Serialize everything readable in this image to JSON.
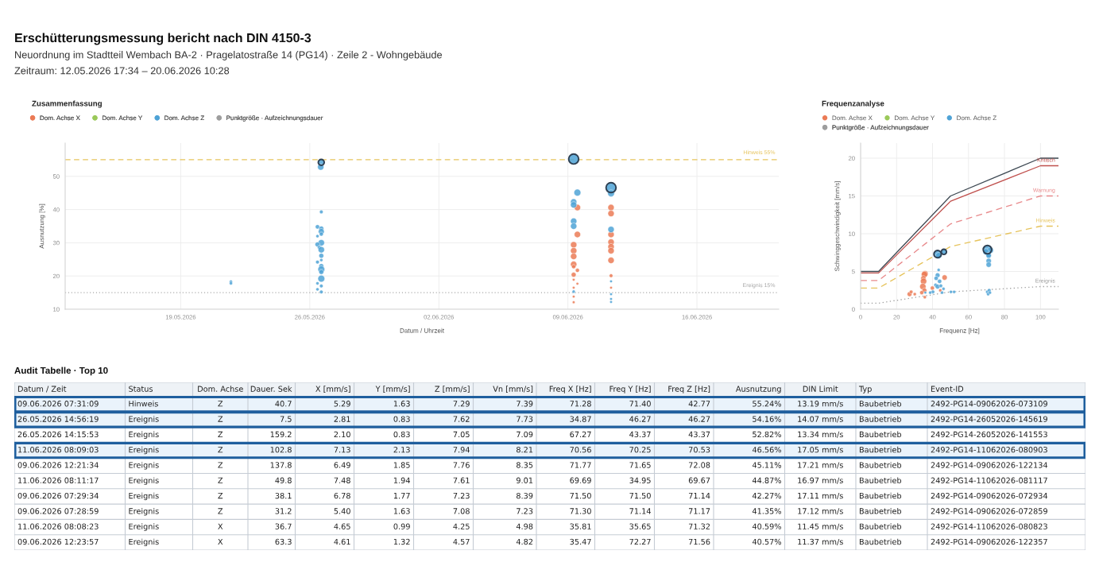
{
  "chart_data": [
    {
      "type": "other",
      "title": "Erschütterungsmessung bericht nach DIN 4150-3",
      "subtitle": "Neuordnung im Stadtteil Wembach BA-2 · Pragelatostraße 14 (PG14) · Zeile 2 - Wohngebäude",
      "annotations": [
        "Zeitraum: 12.05.2026 17:34 – 20.06.2026 10:28"
      ]
    },
    {
      "type": "bubble",
      "title": "Zusammenfassung",
      "xlabel": "Datum / Uhrzeit",
      "ylabel": "Ausnutzung [%]",
      "xlim": [
        "2026-05-12T17:34",
        "2026-06-20T10:28"
      ],
      "ylim": [
        10,
        60
      ],
      "xticks": [
        {
          "value": "2026-05-19",
          "label": "19.05.2026"
        },
        {
          "value": "2026-05-26",
          "label": "26.05.2026"
        },
        {
          "value": "2026-06-02",
          "label": "02.06.2026"
        },
        {
          "value": "2026-06-09",
          "label": "09.06.2026"
        },
        {
          "value": "2026-06-16",
          "label": "16.06.2026"
        }
      ],
      "yticks": [
        10,
        20,
        30,
        40,
        50
      ],
      "grid": true,
      "legend": "top left",
      "ref_lines": [
        {
          "axis": "y",
          "value": 55,
          "label": "Hinweis 55%",
          "color": "#e6c35c",
          "line_style": "dashed"
        },
        {
          "axis": "y",
          "value": 15,
          "label": "Ereignis 15%",
          "color": "#a6a6a6",
          "line_style": "dotted"
        }
      ],
      "series": [
        {
          "name": "Dom. Achse X",
          "color": "#eb7b56",
          "marker": "circle",
          "x": [
            "2026-06-09T12:23",
            "2026-06-09T12:22",
            "2026-06-09T07:30",
            "2026-06-09T07:30",
            "2026-06-09T07:30",
            "2026-06-09T07:30",
            "2026-06-09T07:30",
            "2026-06-09T12:22",
            "2026-06-09T07:30",
            "2026-06-09T07:30",
            "2026-06-09T12:22",
            "2026-06-09T07:30",
            "2026-06-09T07:30",
            "2026-06-09T07:30",
            "2026-06-11T08:08",
            "2026-06-11T08:10",
            "2026-06-11T08:10",
            "2026-06-11T08:10",
            "2026-06-11T08:10",
            "2026-06-11T08:10",
            "2026-06-11T08:10",
            "2026-06-11T08:10",
            "2026-06-11T08:10"
          ],
          "values": [
            40.6,
            32.5,
            29.4,
            27.6,
            25.9,
            23.5,
            22.8,
            21.7,
            20.4,
            18.9,
            17.7,
            16.5,
            13.8,
            12.1,
            40.6,
            38.8,
            32.5,
            30.2,
            28.8,
            27.6,
            24.7,
            20.1,
            16.5
          ],
          "sizes": [
            0.4,
            0.4,
            0.4,
            0.4,
            0.4,
            0.4,
            0.16,
            0.16,
            0.23,
            0.07,
            0.07,
            0.07,
            0.07,
            0.07,
            0.4,
            0.4,
            0.4,
            0.4,
            0.4,
            0.4,
            0.4,
            0.13,
            0.07
          ]
        },
        {
          "name": "Dom. Achse Y",
          "color": "#9bc95a",
          "marker": "circle"
        },
        {
          "name": "Dom. Achse Z",
          "color": "#4fa3d6",
          "marker": "circle",
          "x": [
            "2026-05-21T17:20",
            "2026-05-21T17:20",
            "2026-05-26T14:56",
            "2026-05-26T14:15",
            "2026-05-26T15:00",
            "2026-05-26T10:00",
            "2026-05-26T15:00",
            "2026-05-26T15:00",
            "2026-05-26T15:00",
            "2026-05-26T10:00",
            "2026-05-26T15:00",
            "2026-05-26T10:00",
            "2026-05-26T12:30",
            "2026-05-26T15:00",
            "2026-05-26T15:00",
            "2026-05-26T15:00",
            "2026-05-26T10:00",
            "2026-05-26T15:00",
            "2026-05-26T15:00",
            "2026-05-26T15:00",
            "2026-05-26T15:00",
            "2026-05-26T10:00",
            "2026-05-26T15:00",
            "2026-05-26T10:00",
            "2026-05-26T15:00",
            "2026-06-09T07:31",
            "2026-06-09T12:21",
            "2026-06-09T07:29",
            "2026-06-09T07:28",
            "2026-06-09T07:30",
            "2026-06-09T07:30",
            "2026-06-09T07:30",
            "2026-06-11T08:09",
            "2026-06-11T08:11",
            "2026-06-11T08:10",
            "2026-06-11T08:10",
            "2026-06-11T08:10",
            "2026-06-11T08:10",
            "2026-06-11T08:10"
          ],
          "values": [
            18.3,
            17.8,
            54.2,
            52.8,
            39.3,
            34.8,
            34.3,
            33.4,
            32.6,
            32.0,
            30.0,
            29.5,
            28.6,
            27.9,
            26.1,
            24.8,
            24.2,
            23.0,
            22.0,
            21.2,
            19.2,
            17.8,
            17.0,
            16.0,
            15.2,
            55.2,
            45.1,
            42.3,
            41.4,
            36.5,
            35.0,
            15.3,
            46.6,
            44.9,
            34.0,
            18.4,
            14.5,
            13.1,
            12.2
          ],
          "sizes": [
            0.1,
            0.1,
            0.36,
            0.4,
            0.13,
            0.18,
            0.23,
            0.34,
            0.16,
            0.1,
            0.4,
            0.23,
            0.16,
            0.4,
            0.23,
            0.1,
            0.13,
            0.23,
            0.47,
            0.23,
            0.47,
            0.1,
            0.13,
            0.1,
            0.13,
            1.0,
            0.47,
            0.4,
            0.4,
            0.4,
            0.4,
            0.1,
            1.0,
            0.47,
            0.4,
            0.07,
            0.07,
            0.07,
            0.07
          ]
        },
        {
          "name": "Punktgröße · Aufzeichnungsdauer",
          "color": "#9e9e9e",
          "marker": "circle"
        },
        {
          "type": "scatter",
          "color": "#2e4053",
          "marker": "circle",
          "x": [
            "2026-06-09T07:31",
            "2026-05-26T14:56",
            "2026-06-11T08:09"
          ],
          "values": [
            55.2,
            54.2,
            46.6
          ],
          "sizes": [
            1.0,
            0.36,
            1.0
          ]
        }
      ]
    },
    {
      "type": "bubble",
      "title": "Frequenzanalyse",
      "xlabel": "Frequenz [Hz]",
      "ylabel": "Schwinggeschwindigkeit [mm/s]",
      "xlim": [
        0,
        110
      ],
      "ylim": [
        0,
        22
      ],
      "xticks": [
        0,
        20,
        40,
        60,
        80,
        100
      ],
      "yticks": [
        0,
        5,
        10,
        15,
        20
      ],
      "grid": true,
      "legend": "top left",
      "series": [
        {
          "name": "Dom. Achse X",
          "color": "#eb7b56",
          "marker": "circle",
          "x": [
            35.8,
            35.5,
            34.9,
            35.0,
            34.6,
            35.5,
            34.0,
            35.7,
            27.2,
            28.1,
            30.1,
            39.9,
            44.3,
            46.7
          ],
          "values": [
            4.7,
            4.6,
            4.1,
            3.7,
            3.0,
            2.5,
            2.2,
            1.6,
            2.0,
            2.3,
            2.0,
            2.8,
            2.5,
            4.2
          ],
          "sizes": [
            0.56,
            0.56,
            0.39,
            0.56,
            0.56,
            0.32,
            0.23,
            0.14,
            0.32,
            0.18,
            0.14,
            0.23,
            0.14,
            0.39
          ]
        },
        {
          "name": "Dom. Achse Y",
          "color": "#9bc95a",
          "marker": "circle"
        },
        {
          "name": "Dom. Achse Z",
          "color": "#4fa3d6",
          "marker": "circle",
          "x": [
            42.8,
            43.4,
            46.3,
            70.5,
            72.1,
            69.7,
            71.1,
            71.2,
            71.2,
            71.2,
            43.4,
            42.8,
            42.0,
            43.9,
            41.7,
            42.8,
            44.6,
            40.2,
            38.7,
            46.1,
            45.3,
            50.2,
            52.0,
            36.0,
            70.5,
            71.5,
            70.9,
            71.9
          ],
          "values": [
            7.3,
            7.1,
            7.6,
            7.9,
            7.8,
            7.6,
            7.2,
            7.1,
            6.4,
            5.9,
            5.2,
            4.5,
            4.1,
            3.7,
            3.2,
            3.0,
            3.1,
            2.3,
            2.2,
            2.7,
            2.2,
            2.3,
            2.3,
            2.2,
            2.3,
            2.5,
            2.0,
            2.2
          ],
          "sizes": [
            0.77,
            0.56,
            0.39,
            1.0,
            0.56,
            0.56,
            0.39,
            0.39,
            0.39,
            0.39,
            0.14,
            0.32,
            0.25,
            0.25,
            0.18,
            0.32,
            0.18,
            0.18,
            0.14,
            0.14,
            0.14,
            0.14,
            0.14,
            0.1,
            0.18,
            0.18,
            0.14,
            0.14
          ]
        },
        {
          "name": "Punktgröße · Aufzeichnungsdauer",
          "color": "#9e9e9e",
          "marker": "circle"
        },
        {
          "type": "scatter",
          "color": "#2e4053",
          "marker": "circle",
          "x": [
            42.8,
            46.3,
            70.5
          ],
          "values": [
            7.3,
            7.6,
            7.9
          ],
          "sizes": [
            0.77,
            0.39,
            1.0
          ]
        },
        {
          "type": "line",
          "color": "#3d4852",
          "x": [
            0,
            10,
            50,
            100,
            110
          ],
          "values": [
            5,
            5,
            15,
            20,
            20
          ]
        },
        {
          "type": "line",
          "name": "Kritisch",
          "color": "#c0504d",
          "x": [
            0,
            10,
            50,
            100,
            110
          ],
          "values": [
            4.8,
            4.8,
            14.3,
            19,
            19
          ]
        },
        {
          "type": "line",
          "name": "Warnung",
          "color": "#e8898b",
          "line_style": "dashed",
          "x": [
            0,
            10,
            50,
            100,
            110
          ],
          "values": [
            3.8,
            3.8,
            11.3,
            15,
            15
          ]
        },
        {
          "type": "line",
          "name": "Hinweis",
          "color": "#e6c35c",
          "line_style": "dashed",
          "x": [
            0,
            10,
            50,
            100,
            110
          ],
          "values": [
            2.8,
            2.8,
            8.3,
            11,
            11
          ]
        },
        {
          "type": "line",
          "name": "Ereignis",
          "color": "#9e9e9e",
          "line_style": "dotted",
          "x": [
            0,
            10,
            50,
            100,
            110
          ],
          "values": [
            0.8,
            0.8,
            2.3,
            3,
            3
          ]
        }
      ]
    },
    {
      "type": "other",
      "title": "Audit Tabelle · Top 10",
      "categories": [
        "Datum / Zeit",
        "Status",
        "Dom. Achse",
        "Dauer. Sek",
        "X [mm/s]",
        "Y [mm/s]",
        "Z [mm/s]",
        "Vn [mm/s]",
        "Freq X [Hz]",
        "Freq Y [Hz]",
        "Freq Z [Hz]",
        "Ausnutzung",
        "DIN Limit",
        "Typ",
        "Event-ID"
      ],
      "cell_labels": [
        [
          "09.06.2026 07:31:09",
          "Hinweis",
          "Z",
          "40.7",
          "5.29",
          "1.63",
          "7.29",
          "7.39",
          "71.28",
          "71.40",
          "42.77",
          "55.24%",
          "13.19 mm/s",
          "Baubetrieb",
          "2492-PG14-09062026-073109"
        ],
        [
          "26.05.2026 14:56:19",
          "Ereignis",
          "Z",
          "7.5",
          "2.81",
          "0.83",
          "7.62",
          "7.73",
          "34.87",
          "46.27",
          "46.27",
          "54.16%",
          "14.07 mm/s",
          "Baubetrieb",
          "2492-PG14-26052026-145619"
        ],
        [
          "26.05.2026 14:15:53",
          "Ereignis",
          "Z",
          "159.2",
          "2.10",
          "0.83",
          "7.05",
          "7.09",
          "67.27",
          "43.37",
          "43.37",
          "52.82%",
          "13.34 mm/s",
          "Baubetrieb",
          "2492-PG14-26052026-141553"
        ],
        [
          "11.06.2026 08:09:03",
          "Ereignis",
          "Z",
          "102.8",
          "7.13",
          "2.13",
          "7.94",
          "8.21",
          "70.56",
          "70.25",
          "70.53",
          "46.56%",
          "17.05 mm/s",
          "Baubetrieb",
          "2492-PG14-11062026-080903"
        ],
        [
          "09.06.2026 12:21:34",
          "Ereignis",
          "Z",
          "137.8",
          "6.49",
          "1.85",
          "7.76",
          "8.35",
          "71.77",
          "71.65",
          "72.08",
          "45.11%",
          "17.21 mm/s",
          "Baubetrieb",
          "2492-PG14-09062026-122134"
        ],
        [
          "11.06.2026 08:11:17",
          "Ereignis",
          "Z",
          "49.8",
          "7.48",
          "1.94",
          "7.61",
          "9.01",
          "69.69",
          "34.95",
          "69.67",
          "44.87%",
          "16.97 mm/s",
          "Baubetrieb",
          "2492-PG14-11062026-081117"
        ],
        [
          "09.06.2026 07:29:34",
          "Ereignis",
          "Z",
          "38.1",
          "6.78",
          "1.77",
          "7.23",
          "8.39",
          "71.50",
          "71.50",
          "71.14",
          "42.27%",
          "17.11 mm/s",
          "Baubetrieb",
          "2492-PG14-09062026-072934"
        ],
        [
          "09.06.2026 07:28:59",
          "Ereignis",
          "Z",
          "31.2",
          "5.40",
          "1.63",
          "7.08",
          "7.23",
          "71.30",
          "71.14",
          "71.17",
          "41.35%",
          "17.12 mm/s",
          "Baubetrieb",
          "2492-PG14-09062026-072859"
        ],
        [
          "11.06.2026 08:08:23",
          "Ereignis",
          "X",
          "36.7",
          "4.65",
          "0.99",
          "4.25",
          "4.98",
          "35.81",
          "35.65",
          "71.32",
          "40.59%",
          "11.45 mm/s",
          "Baubetrieb",
          "2492-PG14-11062026-080823"
        ],
        [
          "09.06.2026 12:23:57",
          "Ereignis",
          "X",
          "63.3",
          "4.61",
          "1.32",
          "4.57",
          "4.82",
          "35.47",
          "72.27",
          "71.56",
          "40.57%",
          "11.37 mm/s",
          "Baubetrieb",
          "2492-PG14-09062026-122357"
        ]
      ]
    }
  ]
}
